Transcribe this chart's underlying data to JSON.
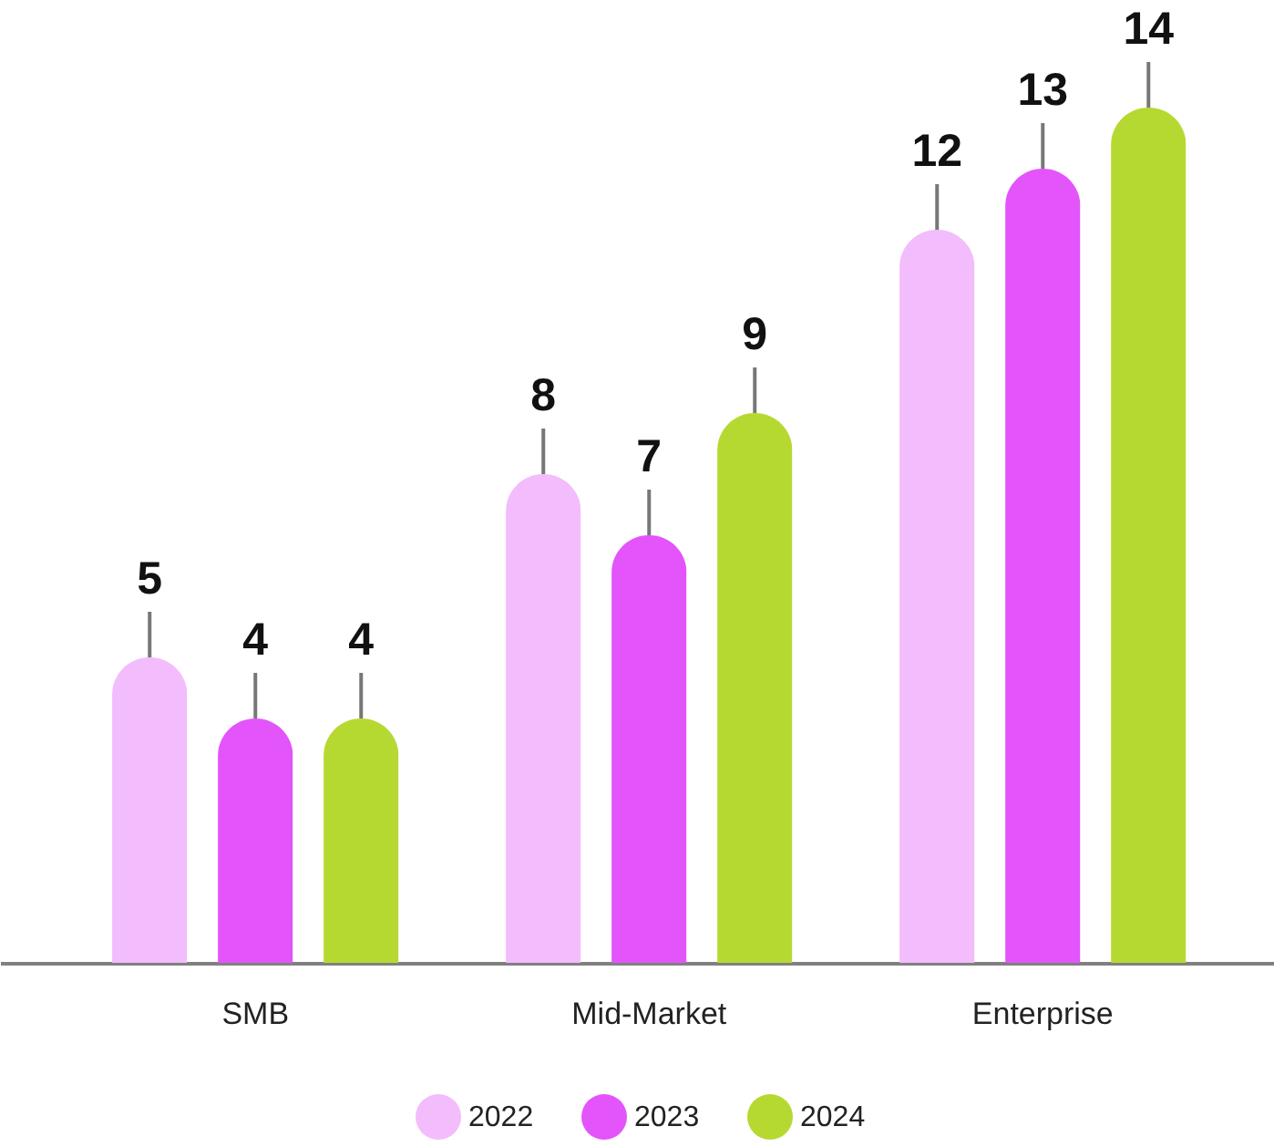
{
  "chart_data": {
    "type": "bar",
    "categories": [
      "SMB",
      "Mid-Market",
      "Enterprise"
    ],
    "series": [
      {
        "name": "2022",
        "color": "#f3bcfc",
        "values": [
          5,
          8,
          12
        ]
      },
      {
        "name": "2023",
        "color": "#e354fb",
        "values": [
          4,
          7,
          13
        ]
      },
      {
        "name": "2024",
        "color": "#b6d932",
        "values": [
          4,
          9,
          14
        ]
      }
    ],
    "data_labels": true,
    "legend": "bottom",
    "grid": false,
    "tick_labels": "x"
  }
}
